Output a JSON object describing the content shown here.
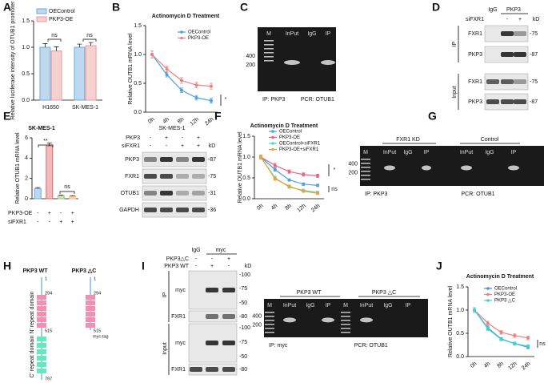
{
  "panel_letters": [
    "A",
    "B",
    "C",
    "D",
    "E",
    "F",
    "G",
    "H",
    "I",
    "J"
  ],
  "chart_data": [
    {
      "type": "bar",
      "ylabel": "Relative luciferase intensity of OTUB1 promoter",
      "categories": [
        "H1650",
        "SK-MES-1"
      ],
      "series": [
        {
          "name": "OEControl",
          "color": "#6fa8dc",
          "values": [
            1.0,
            1.0
          ],
          "errors": [
            0.07,
            0.06
          ]
        },
        {
          "name": "PKP3-OE",
          "color": "#ea9999",
          "values": [
            0.93,
            1.03
          ],
          "errors": [
            0.08,
            0.06
          ]
        }
      ],
      "ylim": [
        0,
        1.5
      ],
      "yticks": [
        {
          "value": 0,
          "label": "0.0"
        },
        {
          "value": 0.5,
          "label": "0.5"
        },
        {
          "value": 1,
          "label": "1.0"
        },
        {
          "value": 1.5,
          "label": "1.5"
        }
      ],
      "annotations": [
        "ns",
        "ns"
      ]
    },
    {
      "type": "line",
      "title": "Actinomycin D Treatment",
      "ylabel": "Relative OUTB1 mRNA level",
      "categories": [
        "0h",
        "4h",
        "8h",
        "12h",
        "24h"
      ],
      "series": [
        {
          "name": "OEControl",
          "color": "#4aa3df",
          "values": [
            1.0,
            0.65,
            0.38,
            0.25,
            0.2
          ],
          "errors": [
            0.06,
            0.04,
            0.04,
            0.04,
            0.04
          ]
        },
        {
          "name": "PKP3-OE",
          "color": "#f08080",
          "values": [
            1.0,
            0.75,
            0.55,
            0.47,
            0.45
          ],
          "errors": [
            0.06,
            0.05,
            0.05,
            0.05,
            0.05
          ]
        }
      ],
      "ylim": [
        0,
        1.5
      ],
      "yticks": [
        {
          "value": 0,
          "label": "0.0"
        },
        {
          "value": 0.5,
          "label": "0.5"
        },
        {
          "value": 1,
          "label": "1.0"
        },
        {
          "value": 1.5,
          "label": "1.5"
        }
      ],
      "annotations": [
        "*"
      ]
    },
    {
      "type": "bar",
      "title": "SK-MES-1",
      "ylabel": "Relative OTUB1 mRNA level",
      "values": [
        1.0,
        5.2,
        0.3,
        0.25
      ],
      "errors": [
        0.1,
        0.3,
        0.05,
        0.05
      ],
      "colors": [
        "#6fa8dc",
        "#e06666",
        "#93c47d",
        "#f6b26b"
      ],
      "row_labels": [
        "PKP3-OE",
        "siFXR1"
      ],
      "rows": [
        [
          "-",
          "+",
          "-",
          "+"
        ],
        [
          "-",
          "-",
          "+",
          "+"
        ]
      ],
      "ylim": [
        0,
        6
      ],
      "yticks": [
        0,
        2,
        4,
        6
      ],
      "annotations": [
        "**",
        "ns"
      ]
    },
    {
      "type": "line",
      "title": "Actinomycin D Treatment",
      "ylabel": "Relative OUTB1 mRNA level",
      "categories": [
        "0h",
        "4h",
        "8h",
        "12h",
        "24h"
      ],
      "series": [
        {
          "name": "OEControl",
          "color": "#4aa3df",
          "values": [
            1.0,
            0.7,
            0.45,
            0.35,
            0.32
          ],
          "errors": [
            0.05,
            0.04,
            0.03,
            0.03,
            0.03
          ]
        },
        {
          "name": "PKP3-OE",
          "color": "#f06080",
          "values": [
            1.0,
            0.8,
            0.65,
            0.58,
            0.55
          ],
          "errors": [
            0.05,
            0.05,
            0.04,
            0.04,
            0.04
          ]
        },
        {
          "name": "OEControl+siFXR1",
          "color": "#40e0d0",
          "values": [
            1.0,
            0.5,
            0.28,
            0.2,
            0.15
          ],
          "errors": [
            0.05,
            0.04,
            0.03,
            0.03,
            0.03
          ]
        },
        {
          "name": "PKP3-OE+siFXR1",
          "color": "#f0a030",
          "values": [
            1.0,
            0.48,
            0.3,
            0.18,
            0.13
          ],
          "errors": [
            0.05,
            0.04,
            0.03,
            0.03,
            0.03
          ]
        }
      ],
      "ylim": [
        0,
        1.5
      ],
      "yticks": [
        {
          "value": 0,
          "label": "0.0"
        },
        {
          "value": 0.5,
          "label": "0.5"
        },
        {
          "value": 1,
          "label": "1.0"
        },
        {
          "value": 1.5,
          "label": "1.5"
        }
      ],
      "annotations": [
        "*",
        "ns"
      ]
    },
    {
      "type": "line",
      "title": "Actinomycin D Treatment",
      "ylabel": "Relative OUTB1 mRNA level",
      "categories": [
        "0h",
        "4h",
        "8h",
        "12h",
        "24h"
      ],
      "series": [
        {
          "name": "OEControl",
          "color": "#4a90d9",
          "values": [
            1.0,
            0.62,
            0.38,
            0.28,
            0.2
          ],
          "errors": [
            0.05,
            0.04,
            0.03,
            0.03,
            0.03
          ]
        },
        {
          "name": "PKP3-OE",
          "color": "#f08080",
          "values": [
            1.0,
            0.72,
            0.52,
            0.45,
            0.4
          ],
          "errors": [
            0.05,
            0.04,
            0.04,
            0.04,
            0.04
          ]
        },
        {
          "name": "PKP3 △C",
          "color": "#40d0d0",
          "values": [
            1.0,
            0.6,
            0.37,
            0.28,
            0.22
          ],
          "errors": [
            0.05,
            0.04,
            0.03,
            0.03,
            0.03
          ]
        }
      ],
      "ylim": [
        0,
        1.5
      ],
      "yticks": [
        {
          "value": 0,
          "label": "0.0"
        },
        {
          "value": 0.5,
          "label": "0.5"
        },
        {
          "value": 1,
          "label": "1.0"
        },
        {
          "value": 1.5,
          "label": "1.5"
        }
      ],
      "annotations": [
        "ns"
      ]
    }
  ],
  "panels": {
    "C": {
      "lanes": [
        "M",
        "InPut",
        "IgG",
        "IP"
      ],
      "markers": [
        "400",
        "200"
      ],
      "captions": [
        "IP: PKP3",
        "PCR: OTUB1"
      ]
    },
    "D": {
      "groups": [
        "IgG",
        "PKP3"
      ],
      "row_label": "siFXR1",
      "signs": [
        "-",
        "+"
      ],
      "unit": "kD",
      "sections": [
        "IP",
        "Input"
      ],
      "rows": [
        {
          "name": "FXR1",
          "weight": "-75"
        },
        {
          "name": "PKP3",
          "weight": "-87"
        },
        {
          "name": "FXR1",
          "weight": "-75"
        },
        {
          "name": "PKP3",
          "weight": "-87"
        }
      ]
    },
    "E_blot": {
      "title": "SK-MES-1",
      "row_labels": [
        "PKP3",
        "siFXR1"
      ],
      "rows": [
        [
          "-",
          "+",
          "-",
          "+"
        ],
        [
          "-",
          "-",
          "+",
          "+"
        ]
      ],
      "unit": "kD",
      "bands": [
        {
          "name": "PKP3",
          "weight": "-87"
        },
        {
          "name": "FXR1",
          "weight": "-75"
        },
        {
          "name": "OTUB1",
          "weight": "-31"
        },
        {
          "name": "GAPDH",
          "weight": "-36"
        }
      ]
    },
    "G": {
      "groups": [
        "FXR1 KD",
        "Control"
      ],
      "lanes": [
        "M",
        "InPut",
        "IgG",
        "IP",
        "InPut",
        "IgG",
        "IP"
      ],
      "markers": [
        "400",
        "200"
      ],
      "captions": [
        "IP: PKP3",
        "PCR: OTUB1"
      ]
    },
    "H": {
      "constructs": [
        {
          "name": "PKP3 WT",
          "positions": [
            "1",
            "294",
            "515",
            "797"
          ]
        },
        {
          "name": "PKP3 △C",
          "positions": [
            "1",
            "294",
            "515"
          ],
          "tag": "myc-tag"
        }
      ],
      "domains": [
        "N' repeat domain",
        "C' repeat domain"
      ]
    },
    "I_blot": {
      "groups": [
        "IgG",
        "myc"
      ],
      "row_labels": [
        "PKP3△C",
        "PKP3 WT"
      ],
      "rows": [
        [
          "-",
          "-",
          "+"
        ],
        [
          "-",
          "+",
          "-"
        ]
      ],
      "unit": "kD",
      "sections": [
        "IP",
        "Input"
      ],
      "bands": [
        "myc",
        "FXR1",
        "myc",
        "FXR1"
      ],
      "weights": [
        "-100",
        "-75",
        "-50",
        "-80",
        "-100",
        "-75",
        "-50",
        "-80"
      ]
    },
    "I_gel": {
      "groups": [
        "PKP3 WT",
        "PKP3 △C"
      ],
      "lanes": [
        "M",
        "InPut",
        "IgG",
        "IP",
        "M",
        "InPut",
        "IgG",
        "IP"
      ],
      "markers": [
        "400",
        "200"
      ],
      "captions": [
        "IP: myc",
        "PCR: OTUB1"
      ]
    }
  }
}
